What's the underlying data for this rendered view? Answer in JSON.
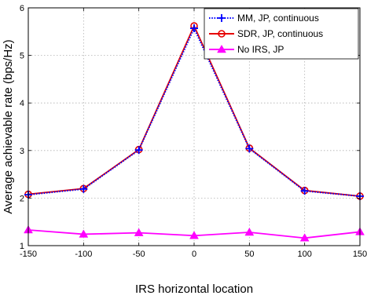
{
  "chart_data": {
    "type": "line",
    "title": "",
    "xlabel": "IRS horizontal location",
    "ylabel": "Average achievable rate (bps/Hz)",
    "x": [
      -150,
      -100,
      -50,
      0,
      50,
      100,
      150
    ],
    "xticks": [
      -150,
      -100,
      -50,
      0,
      50,
      100,
      150
    ],
    "yticks": [
      1,
      2,
      3,
      4,
      5,
      6
    ],
    "xlim": [
      -150,
      150
    ],
    "ylim": [
      1,
      6
    ],
    "grid": true,
    "legend_position": "top-right",
    "series": [
      {
        "name": "MM, JP, continuous",
        "values": [
          2.07,
          2.19,
          3.01,
          5.57,
          3.04,
          2.15,
          2.04
        ],
        "color": "#0000ff",
        "line_style": "dotted",
        "marker": "plus"
      },
      {
        "name": "SDR, JP, continuous",
        "values": [
          2.08,
          2.2,
          3.02,
          5.62,
          3.05,
          2.16,
          2.04
        ],
        "color": "#e60000",
        "line_style": "solid",
        "marker": "circle"
      },
      {
        "name": "No IRS, JP",
        "values": [
          1.33,
          1.24,
          1.27,
          1.21,
          1.28,
          1.16,
          1.29
        ],
        "color": "#ff00ff",
        "line_style": "solid",
        "marker": "triangle"
      }
    ]
  }
}
